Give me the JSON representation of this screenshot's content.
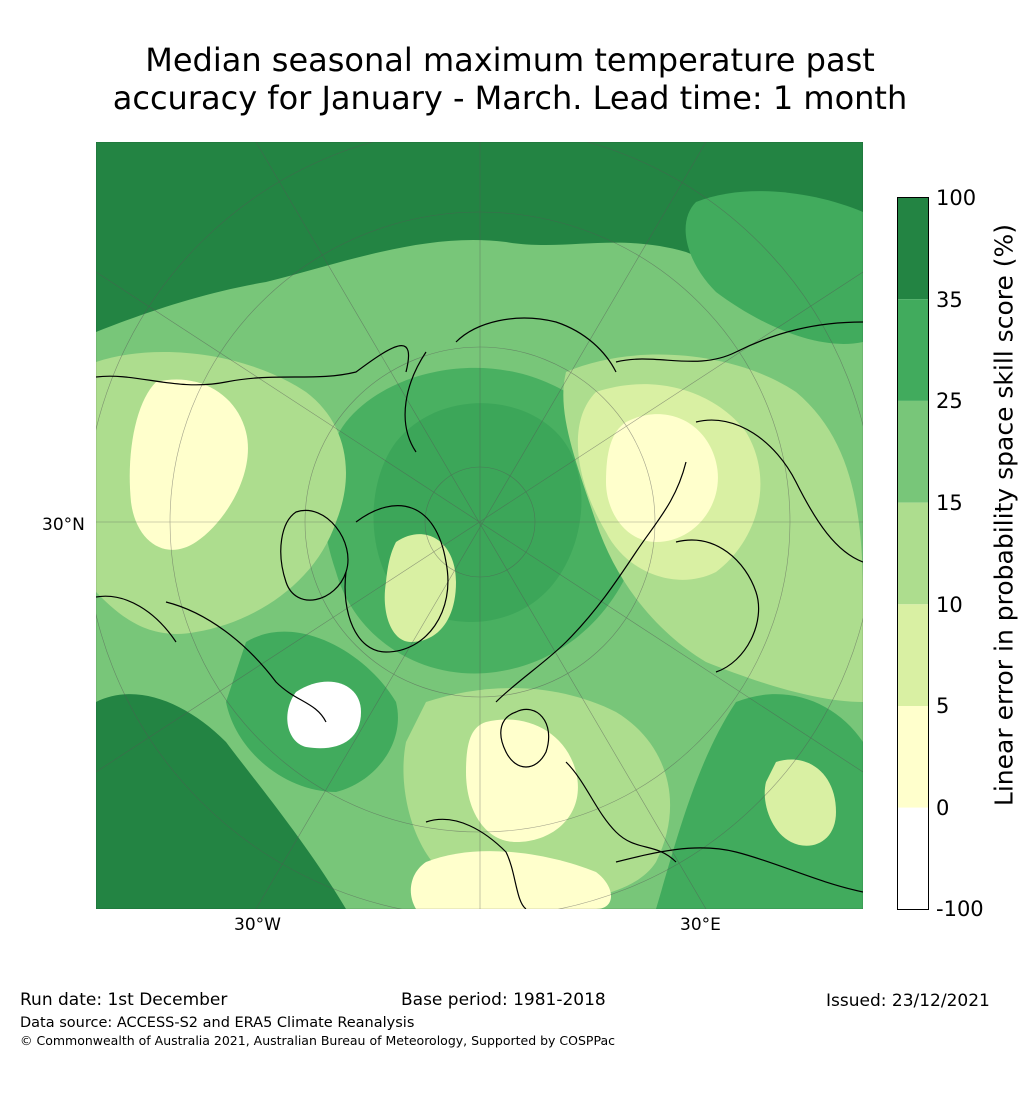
{
  "title": {
    "line1": "Median seasonal maximum temperature past",
    "line2": "accuracy for January - March. Lead time: 1 month"
  },
  "axes": {
    "left_lat": "30°N",
    "bottom_lon_left": "30°W",
    "bottom_lon_right": "30°E"
  },
  "colorbar": {
    "label": "Linear error in probability space skill score (%)",
    "levels": [
      {
        "label": "100",
        "color": "#238443"
      },
      {
        "label": "35",
        "color": "#41ab5d"
      },
      {
        "label": "25",
        "color": "#78c679"
      },
      {
        "label": "15",
        "color": "#addd8e"
      },
      {
        "label": "10",
        "color": "#d9f0a3"
      },
      {
        "label": "5",
        "color": "#ffffcc"
      },
      {
        "label": "0",
        "color": "#ffffff"
      },
      {
        "label": "-100",
        "color": "#ffffff"
      }
    ]
  },
  "footer": {
    "run_date": "Run date: 1st December",
    "base_period": "Base period: 1981-2018",
    "issued": "Issued: 23/12/2021",
    "data_source": "Data source: ACCESS-S2 and ERA5 Climate Reanalysis",
    "copyright": "© Commonwealth of Australia 2021, Australian Bureau of Meteorology, Supported by COSPPac"
  }
}
